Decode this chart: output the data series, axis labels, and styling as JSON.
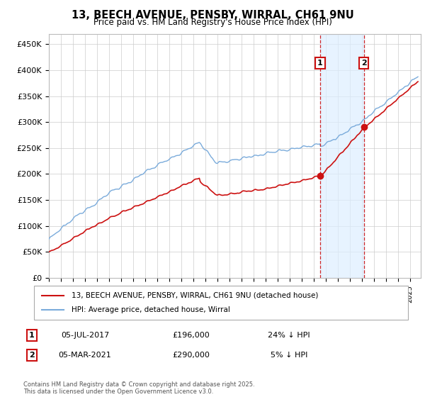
{
  "title": "13, BEECH AVENUE, PENSBY, WIRRAL, CH61 9NU",
  "subtitle": "Price paid vs. HM Land Registry's House Price Index (HPI)",
  "ylabel_ticks": [
    "£0",
    "£50K",
    "£100K",
    "£150K",
    "£200K",
    "£250K",
    "£300K",
    "£350K",
    "£400K",
    "£450K"
  ],
  "ytick_values": [
    0,
    50000,
    100000,
    150000,
    200000,
    250000,
    300000,
    350000,
    400000,
    450000
  ],
  "ylim": [
    0,
    470000
  ],
  "xlim_start": 1995.0,
  "xlim_end": 2025.9,
  "hpi_color": "#7aabdb",
  "price_color": "#cc1111",
  "marker1_date": 2017.54,
  "marker1_price": 196000,
  "marker1_label": "05-JUL-2017",
  "marker1_price_label": "£196,000",
  "marker1_hpi_label": "24% ↓ HPI",
  "marker2_date": 2021.17,
  "marker2_price": 290000,
  "marker2_label": "05-MAR-2021",
  "marker2_price_label": "£290,000",
  "marker2_hpi_label": "5% ↓ HPI",
  "vline_color": "#cc1111",
  "shade_color": "#ddeeff",
  "legend_label_price": "13, BEECH AVENUE, PENSBY, WIRRAL, CH61 9NU (detached house)",
  "legend_label_hpi": "HPI: Average price, detached house, Wirral",
  "footnote": "Contains HM Land Registry data © Crown copyright and database right 2025.\nThis data is licensed under the Open Government Licence v3.0.",
  "background_color": "#ffffff",
  "grid_color": "#cccccc"
}
